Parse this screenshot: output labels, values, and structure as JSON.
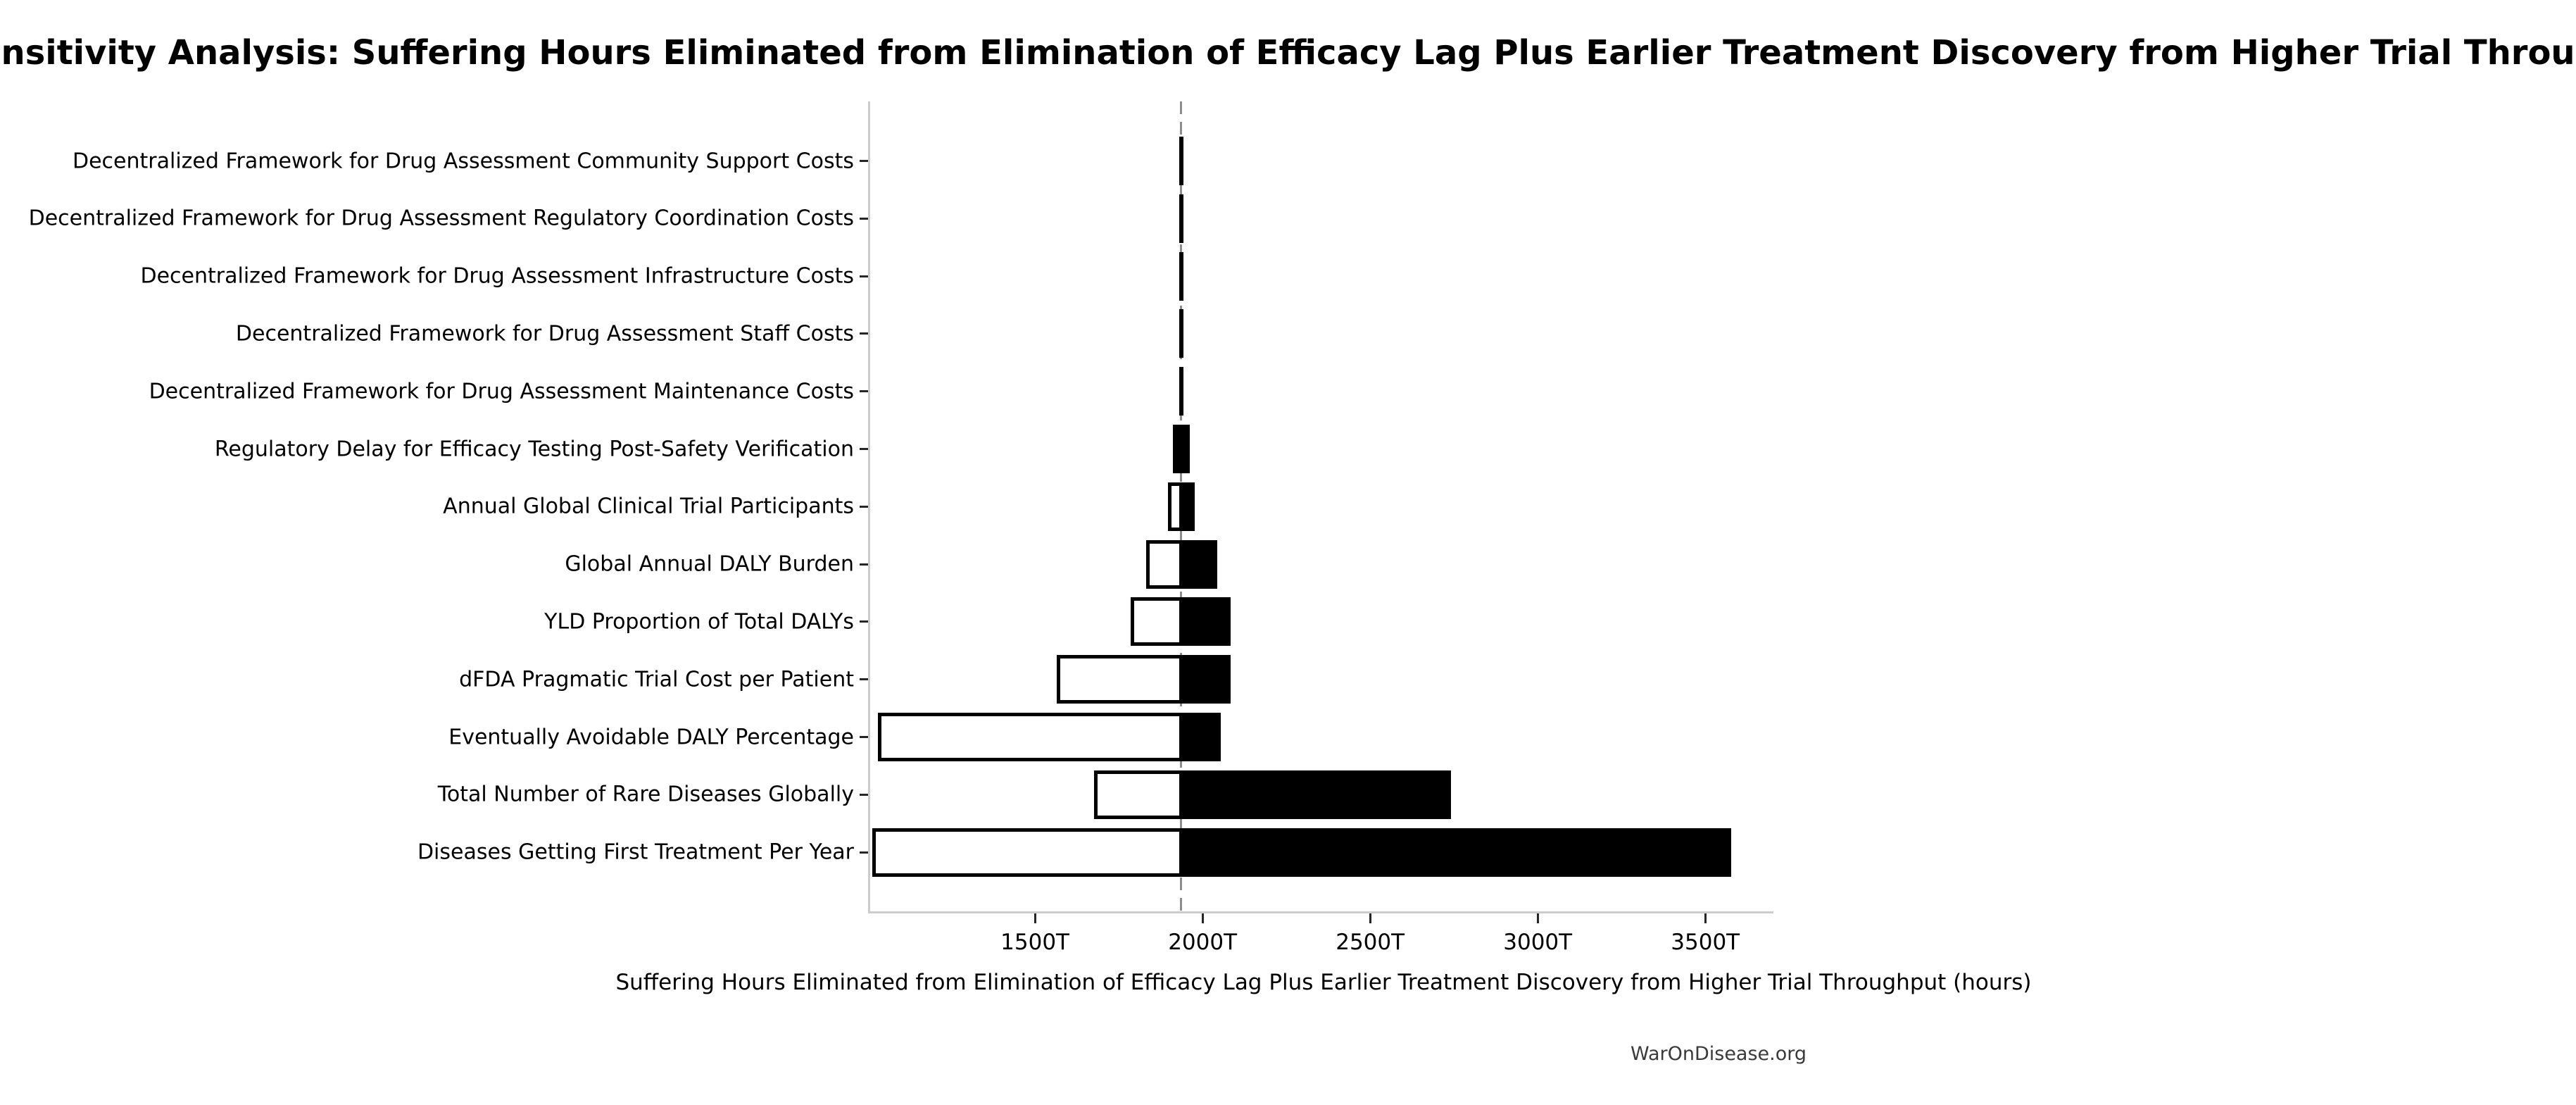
{
  "title": "Sensitivity Analysis: Suffering Hours Eliminated from Elimination of Efficacy Lag Plus Earlier Treatment Discovery from Higher Trial Throughput",
  "watermark": "WarOnDisease.org",
  "chart_data": {
    "type": "bar",
    "variant": "tornado-sensitivity",
    "orientation": "horizontal",
    "title": "Sensitivity Analysis: Suffering Hours Eliminated from Elimination of Efficacy Lag Plus Earlier Treatment Discovery from Higher Trial Throughput",
    "xlabel": "Suffering Hours Eliminated from Elimination of Efficacy Lag Plus Earlier Treatment Discovery from Higher Trial Throughput (hours)",
    "unit_suffix": "T",
    "baseline_value": 1930,
    "xlim": [
      1002,
      3697
    ],
    "grid": false,
    "legend": null,
    "xticks": {
      "values": [
        1500,
        2000,
        2500,
        3000,
        3500
      ],
      "labels": [
        "1500T",
        "2000T",
        "2500T",
        "3000T",
        "3500T"
      ]
    },
    "rows": [
      {
        "label": "Decentralized Framework for Drug Assessment Community Support Costs",
        "low": 1924,
        "high": 1937
      },
      {
        "label": "Decentralized Framework for Drug Assessment Regulatory Coordination Costs",
        "low": 1924,
        "high": 1937
      },
      {
        "label": "Decentralized Framework for Drug Assessment Infrastructure Costs",
        "low": 1924,
        "high": 1937
      },
      {
        "label": "Decentralized Framework for Drug Assessment Staff Costs",
        "low": 1925,
        "high": 1936
      },
      {
        "label": "Decentralized Framework for Drug Assessment Maintenance Costs",
        "low": 1925,
        "high": 1936
      },
      {
        "label": "Regulatory Delay for Efficacy Testing Post-Safety Verification",
        "low": 1906,
        "high": 1955
      },
      {
        "label": "Annual Global Clinical Trial Participants",
        "low": 1891,
        "high": 1970
      },
      {
        "label": "Global Annual DALY Burden",
        "low": 1825,
        "high": 2038
      },
      {
        "label": "YLD Proportion of Total DALYs",
        "low": 1780,
        "high": 2078
      },
      {
        "label": "dFDA Pragmatic Trial Cost per Patient",
        "low": 1558,
        "high": 2078
      },
      {
        "label": "Eventually Avoidable DALY Percentage",
        "low": 1025,
        "high": 2048
      },
      {
        "label": "Total Number of Rare Diseases Globally",
        "low": 1670,
        "high": 2735
      },
      {
        "label": "Diseases Getting First Treatment Per Year",
        "low": 1008,
        "high": 3570
      }
    ],
    "colors": {
      "low_fill": "#ffffff",
      "high_fill": "#000000",
      "bar_edge": "#000000",
      "baseline_line": "#8c8c8c",
      "spine": "#cccccc",
      "tick_mark": "#262626",
      "text": "#000000",
      "watermark_text": "#3a3a3a",
      "background": "#ffffff"
    }
  }
}
